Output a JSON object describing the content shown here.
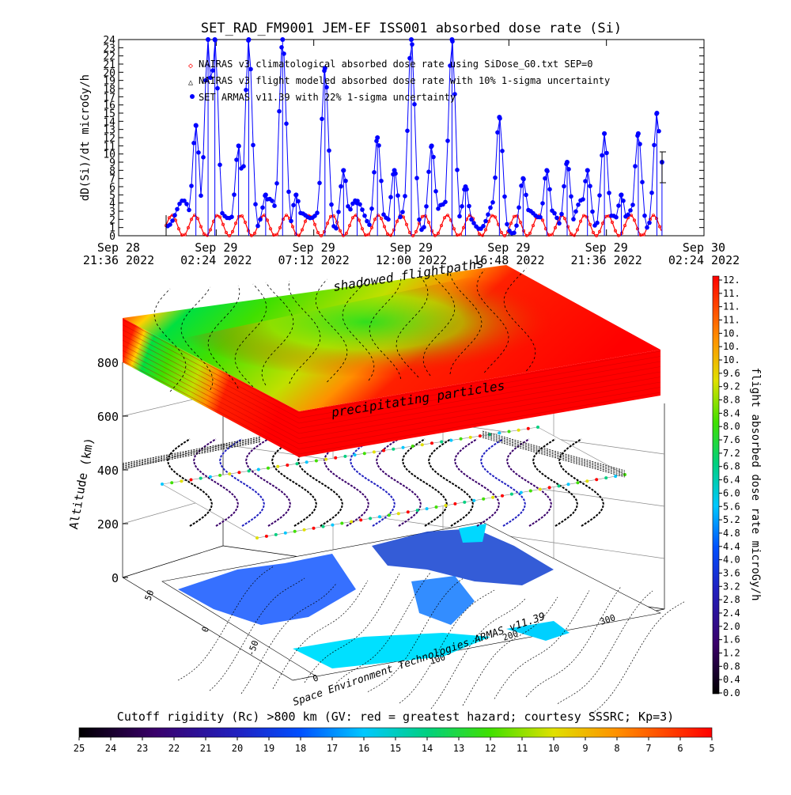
{
  "top_chart": {
    "title": "SET_RAD_FM9001  JEM-EF ISS001 absorbed dose rate (Si)",
    "ylabel": "dD(Si)/dt microGy/h",
    "yticks": [
      "0",
      "1",
      "2",
      "3",
      "4",
      "5",
      "6",
      "7",
      "8",
      "9",
      "10",
      "11",
      "12",
      "13",
      "14",
      "15",
      "16",
      "17",
      "18",
      "19",
      "20",
      "21",
      "22",
      "23",
      "24"
    ],
    "xticks": [
      {
        "date": "Sep 28",
        "time": "21:36 2022"
      },
      {
        "date": "Sep 29",
        "time": "02:24 2022"
      },
      {
        "date": "Sep 29",
        "time": "07:12 2022"
      },
      {
        "date": "Sep 29",
        "time": "12:00 2022"
      },
      {
        "date": "Sep 29",
        "time": "16:48 2022"
      },
      {
        "date": "Sep 29",
        "time": "21:36 2022"
      },
      {
        "date": "Sep 30",
        "time": "02:24 2022"
      }
    ],
    "legend": [
      "NAIRAS v3 climatological absorbed dose rate using SiDose_G0.txt SEP=0",
      "NAIRAS v3 flight modeled absorbed dose rate with 10% 1-sigma uncertainty",
      "SET ARMAS v11.39 with 22% 1-sigma uncertainty"
    ]
  },
  "chart_data": {
    "type": "scatter",
    "title": "SET_RAD_FM9001  JEM-EF ISS001 absorbed dose rate (Si)",
    "ylabel": "dD(Si)/dt microGy/h",
    "ylim": [
      0,
      24
    ],
    "x_range": [
      "Sep 28 21:36 2022",
      "Sep 30 02:24 2022"
    ],
    "series": [
      {
        "name": "NAIRAS v3 climatological absorbed dose rate using SiDose_G0.txt SEP=0",
        "color": "#ff0000",
        "pattern": "oscillation 0 to 2.5 with ~95 min orbital period"
      },
      {
        "name": "SET ARMAS v11.39 with 22% 1-sigma uncertainty",
        "color": "#0000ff",
        "x": [
          "Sep 29 01:24",
          "Sep 29 02:00",
          "Sep 29 02:20",
          "Sep 29 03:30",
          "Sep 29 04:00",
          "Sep 29 04:50",
          "Sep 29 05:40",
          "Sep 29 06:20",
          "Sep 29 07:45",
          "Sep 29 08:40",
          "Sep 29 09:20",
          "Sep 29 10:20",
          "Sep 29 11:10",
          "Sep 29 12:00",
          "Sep 29 13:00",
          "Sep 29 14:00",
          "Sep 29 14:40",
          "Sep 29 16:20",
          "Sep 29 17:30",
          "Sep 29 18:40",
          "Sep 29 19:40",
          "Sep 29 20:40",
          "Sep 29 21:30",
          "Sep 29 22:20",
          "Sep 29 23:10",
          "Sep 30 00:05",
          "Sep 30 00:20"
        ],
        "values": [
          13.5,
          24,
          24,
          11,
          24,
          5,
          24,
          5,
          20.5,
          8,
          4,
          12,
          8,
          24,
          11,
          24,
          6,
          14.5,
          7,
          8,
          9,
          8,
          12.5,
          5,
          12.5,
          15,
          9
        ]
      }
    ],
    "colorbar_right": {
      "label": "flight absorbed dose rate microGy/h",
      "ticks": [
        "12.",
        "11.",
        "11.",
        "11.",
        "10.",
        "10.",
        "10.",
        "9.6",
        "9.2",
        "8.8",
        "8.4",
        "8.0",
        "7.6",
        "7.2",
        "6.8",
        "6.4",
        "6.0",
        "5.6",
        "5.2",
        "4.8",
        "4.4",
        "4.0",
        "3.6",
        "3.2",
        "2.8",
        "2.4",
        "2.0",
        "1.6",
        "1.2",
        "0.8",
        "0.4",
        "0.0"
      ]
    },
    "colorbar_bottom": {
      "label": "Cutoff rigidity (Rc) >800 km (GV: red = greatest hazard; courtesy SSSRC; Kp=3)",
      "ticks": [
        "25",
        "24",
        "23",
        "22",
        "21",
        "20",
        "19",
        "18",
        "17",
        "16",
        "15",
        "14",
        "13",
        "12",
        "11",
        "10",
        "9",
        "8",
        "7",
        "6",
        "5"
      ]
    }
  },
  "plot3d": {
    "zlabel": "Altitude (km)",
    "zticks": [
      "0",
      "200",
      "400",
      "600",
      "800"
    ],
    "annot_shadow": "shadowed flightpaths",
    "annot_precip": "precipitating particles",
    "credit": "Space Environment Technologies ARMAS v11.39",
    "lat_ticks": [
      "50",
      "0",
      "-50"
    ],
    "lon_ticks": [
      "0",
      "100",
      "200",
      "300"
    ]
  },
  "colors": {
    "red": "#ff0000",
    "blue": "#0000ff",
    "black": "#000000"
  }
}
